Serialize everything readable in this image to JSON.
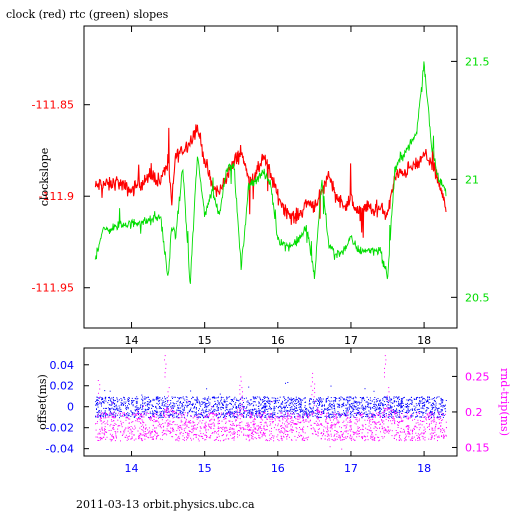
{
  "figure": {
    "title": "clock (red) rtc (green) slopes",
    "footer": "2011-03-13 orbit.physics.ubc.ca"
  },
  "colors": {
    "clock": "#ff0000",
    "rtc": "#00dd00",
    "offset": "#0000ff",
    "round_trip": "#ff00ff",
    "axes": "#000000"
  },
  "chart_data": [
    {
      "type": "line",
      "title": "clock (red) rtc (green) slopes",
      "xlabel": "",
      "xlim": [
        13.35,
        18.45
      ],
      "x_ticks": [
        14,
        15,
        16,
        17,
        18
      ],
      "x_tick_labels": [
        "14",
        "15",
        "16",
        "17",
        "18"
      ],
      "grid": false,
      "ylabel_left": "clockslope",
      "ylim_left": [
        -111.972,
        -111.807
      ],
      "y_ticks_left": [
        -111.85,
        -111.9,
        -111.95
      ],
      "y_tick_labels_left": [
        "-111.85",
        "-111.9",
        "-111.95"
      ],
      "ylabel_right": "",
      "ylim_right": [
        20.37,
        21.65
      ],
      "y_ticks_right": [
        20.5,
        21,
        21.5
      ],
      "y_tick_labels_right": [
        "20.5",
        "21",
        "21.5"
      ],
      "series": [
        {
          "name": "clock",
          "axis": "left",
          "x": [
            13.5,
            13.6,
            13.7,
            13.8,
            13.9,
            14.0,
            14.1,
            14.2,
            14.3,
            14.4,
            14.5,
            14.55,
            14.6,
            14.7,
            14.8,
            14.9,
            15.0,
            15.1,
            15.2,
            15.3,
            15.4,
            15.5,
            15.6,
            15.7,
            15.8,
            15.9,
            16.0,
            16.1,
            16.2,
            16.3,
            16.4,
            16.5,
            16.6,
            16.7,
            16.8,
            16.9,
            17.0,
            17.1,
            17.2,
            17.3,
            17.4,
            17.5,
            17.6,
            17.7,
            17.8,
            17.9,
            18.0,
            18.1,
            18.2,
            18.3
          ],
          "y": [
            -111.895,
            -111.893,
            -111.894,
            -111.892,
            -111.895,
            -111.897,
            -111.893,
            -111.891,
            -111.889,
            -111.892,
            -111.88,
            -111.905,
            -111.878,
            -111.875,
            -111.87,
            -111.862,
            -111.88,
            -111.895,
            -111.898,
            -111.889,
            -111.882,
            -111.875,
            -111.891,
            -111.889,
            -111.878,
            -111.888,
            -111.9,
            -111.907,
            -111.912,
            -111.91,
            -111.903,
            -111.905,
            -111.898,
            -111.888,
            -111.9,
            -111.905,
            -111.902,
            -111.91,
            -111.905,
            -111.908,
            -111.907,
            -111.91,
            -111.89,
            -111.887,
            -111.885,
            -111.883,
            -111.878,
            -111.88,
            -111.893,
            -111.907
          ]
        },
        {
          "name": "rtc",
          "axis": "right",
          "x": [
            13.5,
            13.6,
            13.7,
            13.8,
            13.9,
            14.0,
            14.1,
            14.2,
            14.3,
            14.4,
            14.5,
            14.55,
            14.6,
            14.7,
            14.8,
            14.9,
            15.0,
            15.1,
            15.2,
            15.3,
            15.4,
            15.5,
            15.6,
            15.7,
            15.8,
            15.9,
            16.0,
            16.1,
            16.2,
            16.3,
            16.4,
            16.5,
            16.6,
            16.7,
            16.8,
            16.9,
            17.0,
            17.1,
            17.2,
            17.3,
            17.4,
            17.5,
            17.6,
            17.7,
            17.8,
            17.9,
            18.0,
            18.1,
            18.2,
            18.3
          ],
          "y": [
            20.66,
            20.78,
            20.79,
            20.8,
            20.81,
            20.81,
            20.82,
            20.82,
            20.83,
            20.84,
            20.57,
            20.81,
            20.75,
            21.05,
            20.55,
            21.1,
            20.85,
            20.95,
            20.85,
            21.05,
            21.06,
            20.62,
            20.97,
            21.0,
            21.03,
            20.98,
            20.75,
            20.72,
            20.72,
            20.75,
            20.8,
            20.58,
            21.0,
            20.72,
            20.68,
            20.7,
            20.75,
            20.7,
            20.7,
            20.7,
            20.7,
            20.58,
            21.04,
            21.1,
            21.14,
            21.2,
            21.5,
            21.15,
            21.0,
            20.95
          ]
        }
      ]
    },
    {
      "type": "scatter",
      "xlabel": "",
      "xlim": [
        13.35,
        18.45
      ],
      "x_ticks": [
        14,
        15,
        16,
        17,
        18
      ],
      "x_tick_labels": [
        "14",
        "15",
        "16",
        "17",
        "18"
      ],
      "grid": false,
      "ylabel_left": "offset(ms)",
      "ylim_left": [
        -0.047,
        0.056
      ],
      "y_ticks_left": [
        0.04,
        0.02,
        0,
        -0.02,
        -0.04
      ],
      "y_tick_labels_left": [
        "0.04",
        "0.02",
        "0",
        "-0.02",
        "-0.04"
      ],
      "ylabel_right": "rnd-trip(ms)",
      "ylim_right": [
        0.138,
        0.29
      ],
      "y_ticks_right": [
        0.25,
        0.2,
        0.15
      ],
      "y_tick_labels_right": [
        "0.25",
        "0.2",
        "0.15"
      ],
      "series": [
        {
          "name": "offset",
          "axis": "left",
          "x": [
            13.5,
            13.6,
            13.7,
            13.8,
            13.9,
            14.0,
            14.1,
            14.2,
            14.3,
            14.4,
            14.5,
            14.6,
            14.7,
            14.8,
            14.9,
            15.0,
            15.1,
            15.2,
            15.3,
            15.4,
            15.5,
            15.6,
            15.7,
            15.8,
            15.9,
            16.0,
            16.1,
            16.2,
            16.3,
            16.4,
            16.5,
            16.6,
            16.7,
            16.8,
            16.9,
            17.0,
            17.1,
            17.2,
            17.3,
            17.4,
            17.5,
            17.6,
            17.7,
            17.8,
            17.9,
            18.0,
            18.1,
            18.2,
            18.3
          ],
          "y_center": [
            0.0,
            0.0,
            0.0,
            0.0,
            0.0,
            0.0,
            0.0,
            0.0,
            0.0,
            0.0,
            0.0,
            0.0,
            0.0,
            0.0,
            0.0,
            0.0,
            0.0,
            0.0,
            0.0,
            0.0,
            0.0,
            0.0,
            0.0,
            0.0,
            0.0,
            0.0,
            0.0,
            0.0,
            0.0,
            0.0,
            0.0,
            0.0,
            0.0,
            0.0,
            0.0,
            0.0,
            0.0,
            0.0,
            0.0,
            0.0,
            0.0,
            0.0,
            0.0,
            0.0,
            0.0,
            0.0,
            0.0,
            0.0,
            0.0
          ],
          "y_spread": 0.01
        },
        {
          "name": "round-trip",
          "axis": "right",
          "x": [
            13.5,
            13.6,
            13.7,
            13.8,
            13.9,
            14.0,
            14.1,
            14.2,
            14.3,
            14.4,
            14.5,
            14.6,
            14.7,
            14.8,
            14.9,
            15.0,
            15.1,
            15.2,
            15.3,
            15.4,
            15.5,
            15.6,
            15.7,
            15.8,
            15.9,
            16.0,
            16.1,
            16.2,
            16.3,
            16.4,
            16.5,
            16.6,
            16.7,
            16.8,
            16.9,
            17.0,
            17.1,
            17.2,
            17.3,
            17.4,
            17.5,
            17.6,
            17.7,
            17.8,
            17.9,
            18.0,
            18.1,
            18.2,
            18.3
          ],
          "y_center": [
            0.18,
            0.18,
            0.18,
            0.18,
            0.18,
            0.18,
            0.18,
            0.18,
            0.18,
            0.18,
            0.19,
            0.18,
            0.18,
            0.18,
            0.18,
            0.18,
            0.18,
            0.18,
            0.18,
            0.18,
            0.19,
            0.18,
            0.18,
            0.18,
            0.18,
            0.18,
            0.18,
            0.18,
            0.18,
            0.18,
            0.19,
            0.18,
            0.18,
            0.18,
            0.18,
            0.18,
            0.18,
            0.18,
            0.18,
            0.18,
            0.19,
            0.18,
            0.18,
            0.18,
            0.18,
            0.18,
            0.18,
            0.18,
            0.18
          ],
          "y_spread": 0.02,
          "spikes": [
            {
              "x": 13.55,
              "y": 0.245
            },
            {
              "x": 14.45,
              "y": 0.28
            },
            {
              "x": 14.5,
              "y": 0.235
            },
            {
              "x": 15.48,
              "y": 0.25
            },
            {
              "x": 15.5,
              "y": 0.235
            },
            {
              "x": 16.46,
              "y": 0.255
            },
            {
              "x": 16.5,
              "y": 0.24
            },
            {
              "x": 17.46,
              "y": 0.28
            },
            {
              "x": 17.5,
              "y": 0.235
            }
          ]
        }
      ]
    }
  ]
}
